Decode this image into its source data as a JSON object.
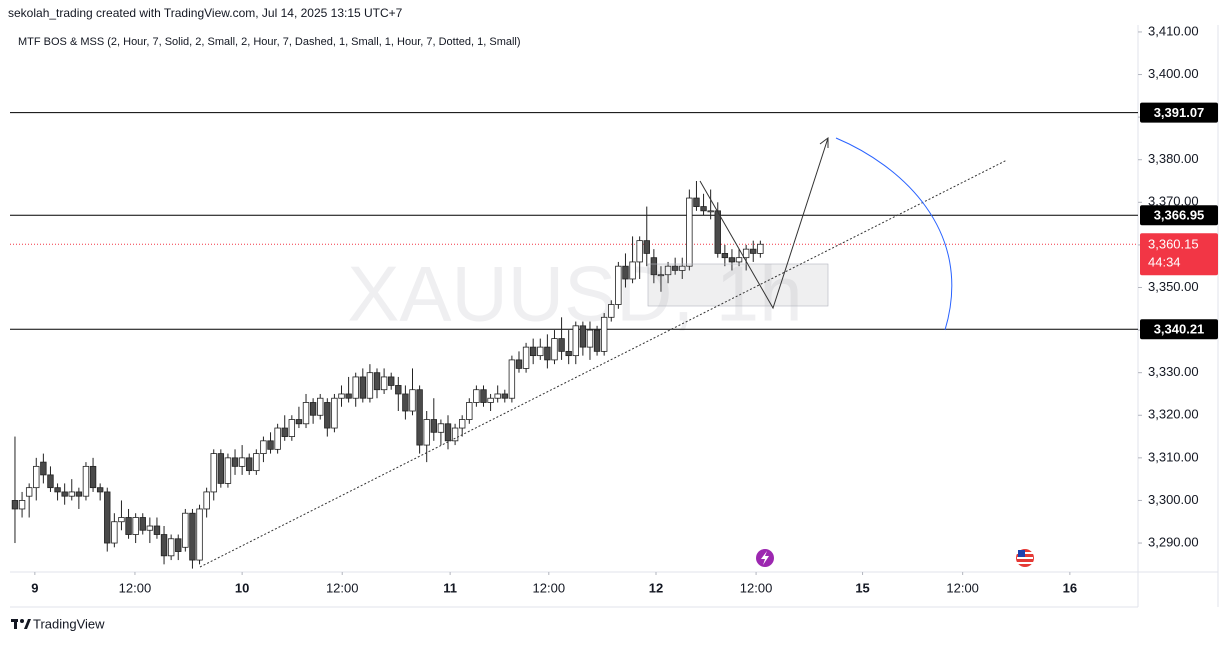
{
  "chart_data": {
    "type": "candlestick",
    "title": "sekolah_trading created with TradingView.com, Jul 14, 2025 13:15 UTC+7",
    "subtitle": "MTF BOS & MSS (2, Hour, 7, Solid, 2, Small, 2, Hour, 7, Dashed, 1, Small, 1, Hour, 7, Dotted, 1, Small)",
    "watermark": "XAUUSD, 1h",
    "branding": "TradingView",
    "up_color": "#ffffff",
    "down_color": "#4a4a4a",
    "wick_color": "#222222",
    "xlim": [
      -0.7,
      158.2
    ],
    "xticks": [
      {
        "value": 2.8,
        "label": "9"
      },
      {
        "value": 16.9,
        "label": "12:00"
      },
      {
        "value": 32,
        "label": "10"
      },
      {
        "value": 46.1,
        "label": "12:00"
      },
      {
        "value": 61.3,
        "label": "11"
      },
      {
        "value": 75.2,
        "label": "12:00"
      },
      {
        "value": 90.3,
        "label": "12"
      },
      {
        "value": 104.4,
        "label": "12:00"
      },
      {
        "value": 119.4,
        "label": "15"
      },
      {
        "value": 133.5,
        "label": "12:00"
      },
      {
        "value": 148.6,
        "label": "16"
      }
    ],
    "ylim": [
      3283.2,
      3417.5
    ],
    "yticks": [
      {
        "value": 3290,
        "label": "3,290.00"
      },
      {
        "value": 3300,
        "label": "3,300.00"
      },
      {
        "value": 3310,
        "label": "3,310.00"
      },
      {
        "value": 3320,
        "label": "3,320.00"
      },
      {
        "value": 3330,
        "label": "3,330.00"
      },
      {
        "value": 3340,
        "label": "3,340.00"
      },
      {
        "value": 3350,
        "label": "3,350.00"
      },
      {
        "value": 3360,
        "label": "3,360.00"
      },
      {
        "value": 3370,
        "label": "3,370.00"
      },
      {
        "value": 3380,
        "label": "3,380.00"
      },
      {
        "value": 3390,
        "label": "3,390.00"
      },
      {
        "value": 3400,
        "label": "3,400.00"
      },
      {
        "value": 3410,
        "label": "3,410.00"
      }
    ],
    "levels": [
      {
        "value": 3391.07,
        "label": "3,391.07"
      },
      {
        "value": 3366.95,
        "label": "3,366.95"
      },
      {
        "value": 3340.21,
        "label": "3,340.21"
      }
    ],
    "last_price": {
      "value": 3360.15,
      "label": "3,360.15",
      "countdown": "44:34",
      "color": "#f23645"
    },
    "x": [
      0,
      1,
      2,
      3,
      4,
      5,
      6,
      7,
      8,
      9,
      10,
      11,
      12,
      13,
      14,
      15,
      16,
      17,
      18,
      19,
      20,
      21,
      22,
      23,
      24,
      25,
      26,
      27,
      28,
      29,
      30,
      31,
      32,
      33,
      34,
      35,
      36,
      37,
      38,
      39,
      40,
      41,
      42,
      43,
      44,
      45,
      46,
      47,
      48,
      49,
      50,
      51,
      52,
      53,
      54,
      55,
      56,
      57,
      58,
      59,
      60,
      61,
      62,
      63,
      64,
      65,
      66,
      67,
      68,
      69,
      70,
      71,
      72,
      73,
      74,
      75,
      76,
      77,
      78,
      79,
      80,
      81,
      82,
      83,
      84,
      85,
      86,
      87,
      88,
      89,
      90,
      91,
      92,
      93,
      94,
      95,
      96,
      97,
      98,
      99,
      100,
      101,
      102,
      103,
      104,
      105
    ],
    "open": [
      3300,
      3298,
      3301,
      3303,
      3309,
      3306,
      3303,
      3302,
      3301,
      3302,
      3301,
      3308,
      3303,
      3302,
      3290,
      3295,
      3296,
      3292,
      3296,
      3293,
      3294,
      3292,
      3287,
      3291,
      3289,
      3297,
      3286,
      3298,
      3302,
      3311,
      3304,
      3310,
      3308,
      3310,
      3307,
      3311,
      3314,
      3312,
      3317,
      3315,
      3319,
      3318,
      3323,
      3320,
      3323,
      3317,
      3324,
      3325,
      3324,
      3329,
      3324,
      3330,
      3326,
      3329,
      3327,
      3325,
      3321,
      3326,
      3313,
      3319,
      3316,
      3318,
      3314,
      3317,
      3319,
      3323,
      3326,
      3323,
      3324,
      3325,
      3324,
      3333,
      3331,
      3336,
      3334,
      3336,
      3333,
      3338,
      3335,
      3334,
      3341,
      3336,
      3340,
      3335,
      3343,
      3346,
      3355,
      3352,
      3356,
      3361,
      3357,
      3353,
      3353,
      3355,
      3354,
      3355,
      3371,
      3369,
      3368,
      3368,
      3358,
      3357,
      3356,
      3357,
      3359,
      3358
    ],
    "high": [
      3315,
      3302,
      3304,
      3310,
      3311,
      3308,
      3304,
      3304,
      3305,
      3303,
      3309,
      3310,
      3304,
      3303,
      3297,
      3300,
      3298,
      3297,
      3297,
      3296,
      3296,
      3294,
      3292,
      3292,
      3298,
      3298,
      3299,
      3303,
      3312,
      3312,
      3311,
      3312,
      3313,
      3311,
      3312,
      3315,
      3316,
      3318,
      3320,
      3320,
      3322,
      3325,
      3324,
      3325,
      3324,
      3325,
      3327,
      3329,
      3330,
      3331,
      3332,
      3331,
      3331,
      3330,
      3329,
      3327,
      3331,
      3327,
      3321,
      3324,
      3319,
      3320,
      3318,
      3320,
      3324,
      3327,
      3327,
      3325,
      3327,
      3326,
      3334,
      3335,
      3337,
      3338,
      3338,
      3339,
      3340,
      3343,
      3340,
      3342,
      3342,
      3342,
      3341,
      3344,
      3347,
      3356,
      3358,
      3362,
      3362,
      3369,
      3359,
      3355,
      3356,
      3357,
      3357,
      3373,
      3375,
      3372,
      3373,
      3370,
      3360,
      3359,
      3359,
      3360,
      3361,
      3361
    ],
    "low": [
      3290,
      3296,
      3296,
      3300,
      3304,
      3302,
      3300,
      3299,
      3300,
      3298,
      3300,
      3302,
      3300,
      3288,
      3289,
      3293,
      3291,
      3290,
      3292,
      3290,
      3291,
      3285,
      3286,
      3286,
      3288,
      3284,
      3285,
      3296,
      3300,
      3303,
      3303,
      3306,
      3306,
      3306,
      3306,
      3309,
      3311,
      3311,
      3314,
      3314,
      3317,
      3317,
      3318,
      3319,
      3315,
      3316,
      3322,
      3323,
      3322,
      3323,
      3323,
      3324,
      3325,
      3326,
      3321,
      3319,
      3320,
      3311,
      3309,
      3314,
      3313,
      3312,
      3313,
      3315,
      3318,
      3322,
      3322,
      3321,
      3323,
      3323,
      3323,
      3330,
      3330,
      3332,
      3333,
      3331,
      3332,
      3333,
      3332,
      3332,
      3334,
      3333,
      3334,
      3334,
      3342,
      3345,
      3350,
      3351,
      3352,
      3355,
      3351,
      3349,
      3351,
      3353,
      3352,
      3354,
      3368,
      3367,
      3366,
      3357,
      3355,
      3354,
      3355,
      3354,
      3356,
      3357
    ],
    "close": [
      3298,
      3300,
      3303,
      3308,
      3306,
      3303,
      3302,
      3301,
      3302,
      3301,
      3308,
      3303,
      3302,
      3290,
      3295,
      3296,
      3292,
      3296,
      3293,
      3294,
      3292,
      3287,
      3291,
      3288,
      3297,
      3286,
      3298,
      3302,
      3311,
      3304,
      3310,
      3308,
      3310,
      3307,
      3311,
      3314,
      3312,
      3317,
      3315,
      3319,
      3318,
      3323,
      3320,
      3324,
      3317,
      3324,
      3325,
      3324,
      3329,
      3324,
      3330,
      3326,
      3329,
      3327,
      3325,
      3321,
      3326,
      3313,
      3319,
      3316,
      3318,
      3314,
      3317,
      3319,
      3323,
      3326,
      3323,
      3324,
      3325,
      3324,
      3333,
      3331,
      3336,
      3334,
      3336,
      3333,
      3338,
      3335,
      3334,
      3341,
      3336,
      3340,
      3335,
      3343,
      3346,
      3355,
      3352,
      3356,
      3361,
      3358,
      3353,
      3353,
      3355,
      3354,
      3355,
      3371,
      3369,
      3368,
      3368,
      3358,
      3357,
      3356,
      3357,
      3359,
      3358,
      3360.15
    ]
  }
}
